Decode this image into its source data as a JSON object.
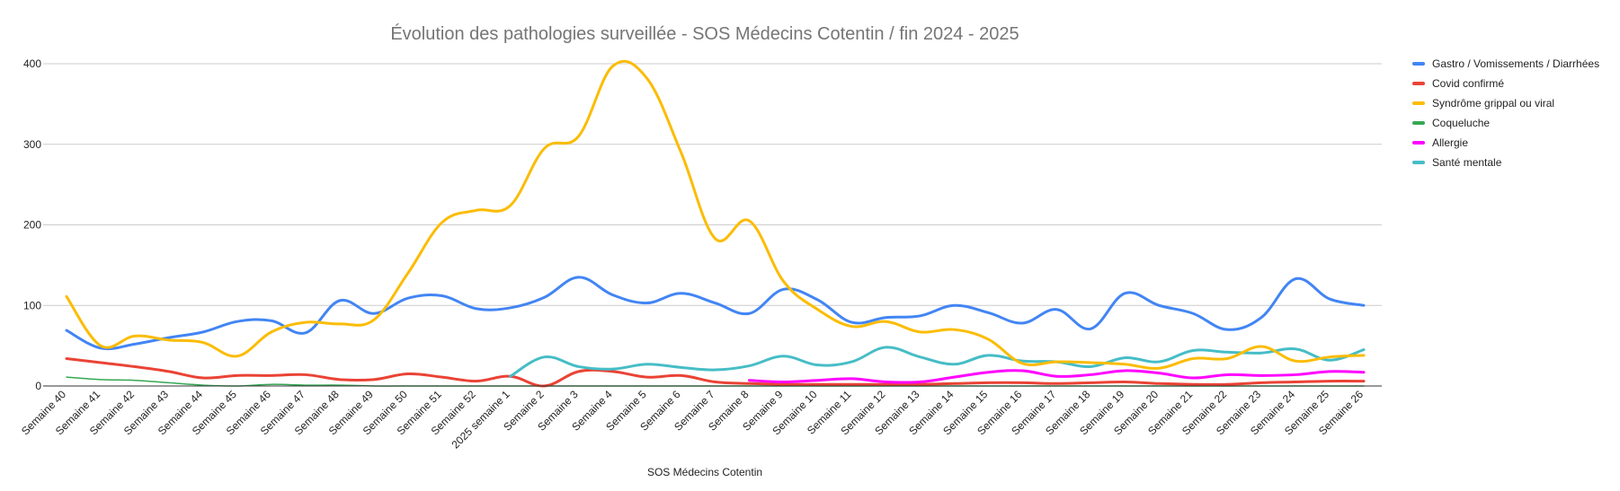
{
  "chart_data": {
    "type": "line",
    "title": "Évolution des pathologies surveillée - SOS Médecins Cotentin / fin 2024 - 2025",
    "xlabel": "SOS Médecins Cotentin",
    "ylabel": "",
    "ylim": [
      0,
      400
    ],
    "yticks": [
      "0",
      "100",
      "200",
      "300",
      "400"
    ],
    "grid": true,
    "legend_position": "right",
    "categories": [
      "Semaine 40",
      "Semaine 41",
      "Semaine 42",
      "Semaine 43",
      "Semaine 44",
      "Semaine 45",
      "Semaine 46",
      "Semaine 47",
      "Semaine 48",
      "Semaine 49",
      "Semaine 50",
      "Semaine 51",
      "Semaine 52",
      "2025 semaine 1",
      "Semaine 2",
      "Semaine 3",
      "Semaine 4",
      "Semaine 5",
      "Semaine 6",
      "Semaine 7",
      "Semaine 8",
      "Semaine 9",
      "Semaine 10",
      "Semaine 11",
      "Semaine 12",
      "Semaine 13",
      "Semaine 14",
      "Semaine 15",
      "Semaine 16",
      "Semaine 17",
      "Semaine 18",
      "Semaine 19",
      "Semaine 20",
      "Semaine 21",
      "Semaine 22",
      "Semaine 23",
      "Semaine 24",
      "Semaine 25",
      "Semaine 26"
    ],
    "series": [
      {
        "name": "Gastro / Vomissements / Diarrhées",
        "color": "#4285f4",
        "width": 3,
        "values": [
          69,
          47,
          52,
          60,
          67,
          80,
          81,
          66,
          106,
          90,
          109,
          112,
          96,
          97,
          110,
          135,
          113,
          103,
          115,
          103,
          90,
          120,
          107,
          79,
          85,
          87,
          100,
          91,
          78,
          95,
          71,
          115,
          100,
          90,
          70,
          85,
          133,
          108,
          100
        ]
      },
      {
        "name": "Covid confirmé",
        "color": "#ea4335",
        "width": 3,
        "values": [
          34,
          29,
          24,
          18,
          10,
          13,
          13,
          14,
          8,
          8,
          15,
          11,
          6,
          12,
          0,
          18,
          18,
          11,
          13,
          5,
          3,
          2,
          2,
          2,
          2,
          2,
          3,
          4,
          4,
          3,
          4,
          5,
          3,
          2,
          2,
          4,
          5,
          6,
          6
        ]
      },
      {
        "name": "Syndrôme grippal ou viral",
        "color": "#fbbc04",
        "width": 3,
        "values": [
          111,
          50,
          62,
          57,
          54,
          37,
          67,
          79,
          77,
          82,
          140,
          203,
          218,
          224,
          295,
          310,
          397,
          382,
          290,
          183,
          205,
          130,
          95,
          74,
          80,
          67,
          70,
          58,
          28,
          30,
          29,
          27,
          22,
          34,
          34,
          49,
          31,
          36,
          38
        ]
      },
      {
        "name": "Coqueluche",
        "color": "#34a853",
        "width": 1.5,
        "values": [
          11,
          8,
          7,
          4,
          1,
          0,
          2,
          1,
          1,
          0,
          0,
          0,
          0,
          0,
          0,
          0,
          0,
          0,
          0,
          0,
          0,
          0,
          0,
          0,
          0,
          0,
          0,
          0,
          0,
          0,
          0,
          0,
          0,
          0,
          0,
          0,
          0,
          0,
          0
        ]
      },
      {
        "name": "Allergie",
        "color": "#ff00ff",
        "width": 3,
        "values": [
          null,
          null,
          null,
          null,
          null,
          null,
          null,
          null,
          null,
          null,
          null,
          null,
          null,
          null,
          null,
          null,
          null,
          null,
          null,
          null,
          7,
          5,
          7,
          9,
          5,
          5,
          11,
          17,
          19,
          12,
          14,
          19,
          16,
          10,
          14,
          13,
          14,
          18,
          17
        ]
      },
      {
        "name": "Santé mentale",
        "color": "#46bdc6",
        "width": 3,
        "values": [
          null,
          null,
          null,
          null,
          null,
          null,
          null,
          null,
          null,
          null,
          null,
          null,
          null,
          12,
          36,
          24,
          21,
          27,
          23,
          20,
          25,
          37,
          26,
          30,
          48,
          36,
          27,
          38,
          31,
          30,
          24,
          35,
          30,
          44,
          42,
          41,
          46,
          32,
          45
        ]
      }
    ]
  }
}
